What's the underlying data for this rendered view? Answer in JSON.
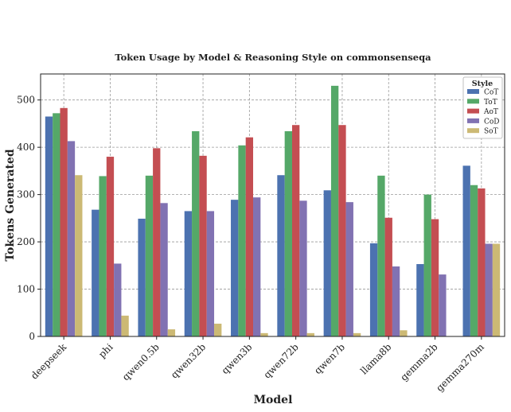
{
  "chart_data": {
    "type": "bar",
    "title": "Token Usage by Model & Reasoning Style on commonsenseqa",
    "xlabel": "Model",
    "ylabel": "Tokens Generated",
    "ylim": [
      0,
      555
    ],
    "yticks": [
      0,
      100,
      200,
      300,
      400,
      500
    ],
    "grid": true,
    "legend": {
      "title": "Style",
      "placement": "top-right"
    },
    "categories": [
      "deepseek",
      "phi",
      "qwen0.5b",
      "qwen32b",
      "qwen3b",
      "qwen72b",
      "qwen7b",
      "llama8b",
      "gemma2b",
      "gemma270m"
    ],
    "series": [
      {
        "name": "CoT",
        "color": "#4c72b0",
        "values": [
          465,
          268,
          249,
          265,
          289,
          341,
          309,
          197,
          153,
          361
        ]
      },
      {
        "name": "ToT",
        "color": "#55a868",
        "values": [
          472,
          339,
          340,
          434,
          404,
          434,
          530,
          340,
          300,
          320
        ]
      },
      {
        "name": "AoT",
        "color": "#c44e52",
        "values": [
          483,
          380,
          398,
          382,
          421,
          447,
          447,
          251,
          248,
          313
        ]
      },
      {
        "name": "CoD",
        "color": "#8172b2",
        "values": [
          413,
          154,
          282,
          265,
          294,
          287,
          284,
          148,
          131,
          196
        ]
      },
      {
        "name": "SoT",
        "color": "#ccb974",
        "values": [
          341,
          44,
          15,
          27,
          7,
          7,
          7,
          13,
          0,
          196
        ]
      }
    ]
  }
}
